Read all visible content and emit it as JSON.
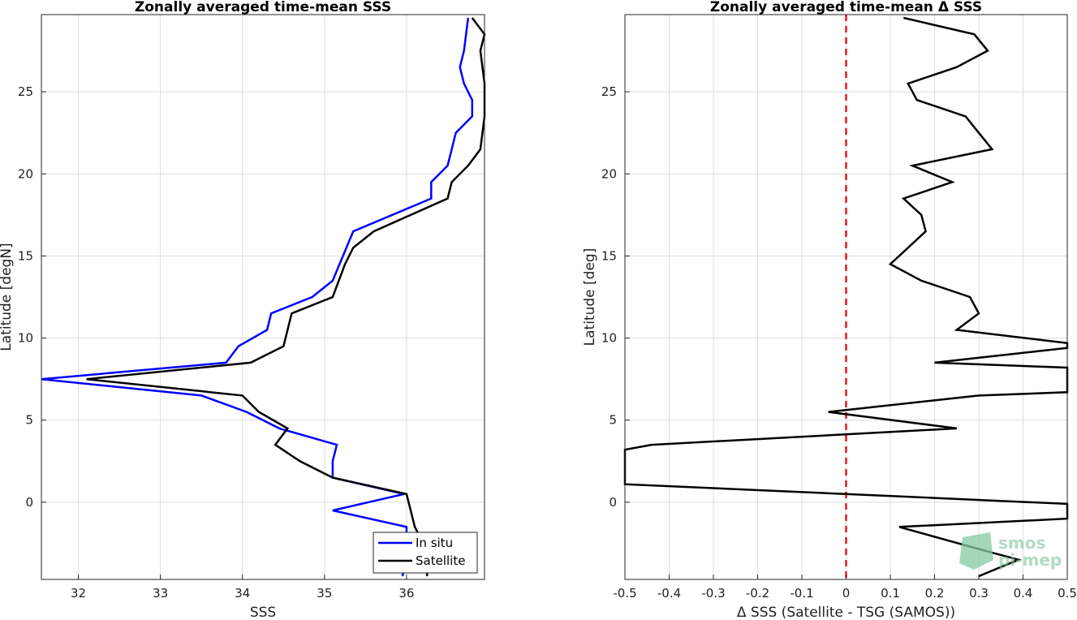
{
  "chart_data": [
    {
      "type": "line",
      "title": "Zonally averaged time-mean SSS",
      "xlabel": "SSS",
      "ylabel": "Latitude [degN]",
      "xlim": [
        31.55,
        36.95
      ],
      "ylim": [
        -4.7,
        29.7
      ],
      "xticks": [
        32,
        33,
        34,
        35,
        36
      ],
      "yticks": [
        0,
        5,
        10,
        15,
        20,
        25
      ],
      "grid": true,
      "legend": "bottom-right",
      "series": [
        {
          "name": "In situ",
          "color": "#0000ff",
          "x": [
            35.95,
            36.0,
            36.0,
            35.1,
            35.97,
            35.1,
            35.1,
            35.15,
            34.45,
            34.05,
            33.5,
            31.55,
            33.8,
            33.95,
            34.3,
            34.35,
            34.85,
            35.1,
            35.35,
            36.3,
            36.3,
            36.5,
            36.55,
            36.6,
            36.8,
            36.8,
            36.7,
            36.65,
            36.7,
            36.75
          ],
          "y": [
            -4.5,
            -3.5,
            -1.5,
            -0.5,
            0.5,
            1.5,
            2.5,
            3.5,
            4.5,
            5.5,
            6.5,
            7.5,
            8.5,
            9.5,
            10.5,
            11.5,
            12.5,
            13.5,
            16.5,
            18.5,
            19.5,
            20.5,
            21.5,
            22.5,
            23.5,
            24.5,
            25.5,
            26.5,
            27.5,
            29.5
          ]
        },
        {
          "name": "Satellite",
          "color": "#000000",
          "x": [
            36.25,
            36.25,
            36.2,
            36.1,
            36.05,
            36.0,
            35.1,
            34.7,
            34.4,
            34.55,
            34.2,
            34.0,
            34.0,
            32.1,
            34.1,
            34.5,
            34.6,
            35.1,
            35.25,
            35.35,
            35.6,
            36.5,
            36.55,
            36.75,
            36.9,
            36.95,
            36.95,
            36.9,
            36.95,
            36.8
          ],
          "y": [
            -4.5,
            -3.5,
            -2.5,
            -1.5,
            -0.5,
            0.5,
            1.5,
            2.5,
            3.5,
            4.5,
            5.5,
            6.5,
            6.5,
            7.5,
            8.5,
            9.5,
            11.5,
            12.5,
            14.5,
            15.5,
            16.5,
            18.5,
            19.5,
            20.5,
            21.5,
            23.5,
            25.5,
            27.5,
            28.5,
            29.5
          ]
        }
      ]
    },
    {
      "type": "line",
      "title": "Zonally averaged time-mean Δ SSS",
      "xlabel": "Δ SSS (Satellite - TSG (SAMOS))",
      "ylabel": "Latitude [deg]",
      "xlim": [
        -0.5,
        0.5
      ],
      "ylim": [
        -4.7,
        29.7
      ],
      "xticks": [
        -0.5,
        -0.4,
        -0.3,
        -0.2,
        -0.1,
        0,
        0.1,
        0.2,
        0.3,
        0.4,
        0.5
      ],
      "xtick_labels": [
        "-0.5",
        "-0.4",
        "-0.3",
        "-0.2",
        "-0.1",
        "0",
        "0.1",
        "0.2",
        "0.3",
        "0.4",
        "0.5"
      ],
      "yticks": [
        0,
        5,
        10,
        15,
        20,
        25
      ],
      "grid": true,
      "reference_line": {
        "x": 0,
        "color": "#e41a1c",
        "style": "dashed"
      },
      "series": [
        {
          "color": "#000000",
          "x": [
            0.3,
            0.39,
            0.32,
            0.12,
            0.5,
            0.5,
            -0.5,
            -0.5,
            -0.44,
            0.25,
            -0.04,
            0.3,
            0.5,
            0.5,
            0.2,
            0.5,
            0.5,
            0.25,
            0.3,
            0.28,
            0.17,
            0.1,
            0.18,
            0.17,
            0.13,
            0.24,
            0.15,
            0.33,
            0.3,
            0.27,
            0.16,
            0.14,
            0.25,
            0.32,
            0.29,
            0.13
          ],
          "y": [
            -4.5,
            -3.5,
            -3.0,
            -1.5,
            -1.0,
            -0.1,
            1.1,
            3.2,
            3.5,
            4.5,
            5.5,
            6.5,
            6.7,
            8.2,
            8.5,
            9.4,
            9.7,
            10.5,
            11.5,
            12.5,
            13.5,
            14.5,
            16.5,
            17.5,
            18.5,
            19.5,
            20.5,
            21.5,
            22.5,
            23.5,
            24.5,
            25.5,
            26.5,
            27.5,
            28.5,
            29.5
          ]
        }
      ]
    }
  ],
  "legend": {
    "items": [
      "In situ",
      "Satellite"
    ]
  },
  "watermark": {
    "line1": "smos",
    "line2": "pi-mep"
  }
}
